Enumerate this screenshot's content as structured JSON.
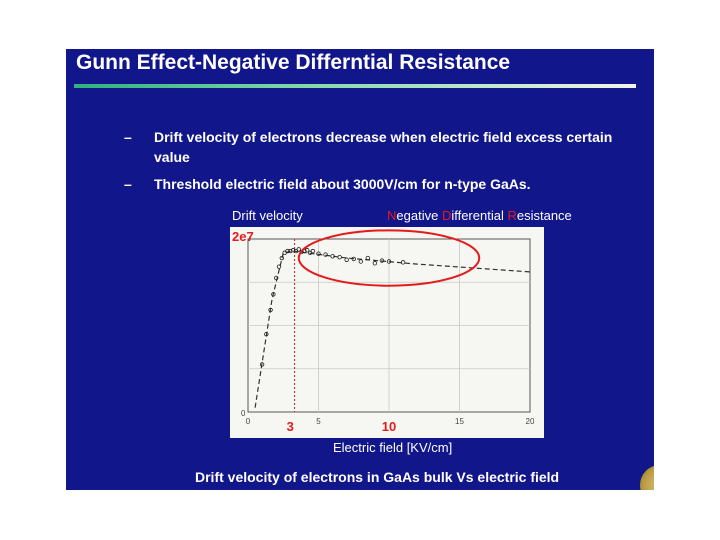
{
  "slide": {
    "title": "Gunn Effect-Negative Differntial Resistance",
    "bullets": [
      {
        "dash": "–",
        "text": "Drift velocity of electrons decrease when electric field excess certain value"
      },
      {
        "dash": "–",
        "text": "Threshold electric field about 3000V/cm for n-type GaAs."
      }
    ],
    "caption": "Drift velocity of electrons in GaAs bulk Vs electric field",
    "colors": {
      "background": "#11168a",
      "text": "#ffffff",
      "highlight": "#e31b1b",
      "title_rule": "#2fb07e"
    },
    "seal_icon": "university-seal-icon"
  },
  "chart_data": {
    "type": "scatter",
    "ylabel": "Drift velocity",
    "xlabel": "Electric field [KV/cm]",
    "annotation": {
      "N": "N",
      "egative ": "egative ",
      "D": "D",
      "ifferential ": "ifferential ",
      "R": "R",
      "esistance": "esistance"
    },
    "y_tick_label": "2e7",
    "y_zero_label": "0",
    "x_ticks": [
      "0",
      "5",
      "15",
      "20"
    ],
    "x_highlight_ticks": [
      "3",
      "10"
    ],
    "threshold_x": 3.3,
    "xlim": [
      0,
      20
    ],
    "ylim": [
      0,
      2.0
    ],
    "fit_line": {
      "x": [
        0.5,
        1.7,
        2.5,
        3.2,
        7,
        12,
        20
      ],
      "y": [
        0.05,
        1.3,
        1.84,
        1.86,
        1.78,
        1.71,
        1.62
      ]
    },
    "series": [
      {
        "x": [
          1.0,
          1.3,
          1.6,
          1.8,
          2.0,
          2.2,
          2.4,
          2.6,
          2.8,
          3.0,
          3.2,
          3.4,
          3.6,
          3.8,
          4.0,
          4.2,
          4.4,
          4.6,
          5.0,
          5.5,
          6.0,
          6.5,
          7.0,
          7.5,
          8.0,
          8.5,
          9.0,
          9.5,
          10.0,
          11.0
        ],
        "y": [
          0.55,
          0.9,
          1.18,
          1.36,
          1.55,
          1.68,
          1.78,
          1.84,
          1.86,
          1.86,
          1.87,
          1.86,
          1.88,
          1.85,
          1.86,
          1.87,
          1.84,
          1.86,
          1.83,
          1.82,
          1.8,
          1.79,
          1.76,
          1.77,
          1.74,
          1.78,
          1.72,
          1.75,
          1.74,
          1.73
        ]
      }
    ],
    "ellipse": {
      "cx": 10.0,
      "cy": 1.78,
      "rx": 6.4,
      "ry": 0.32
    },
    "grid": true
  }
}
